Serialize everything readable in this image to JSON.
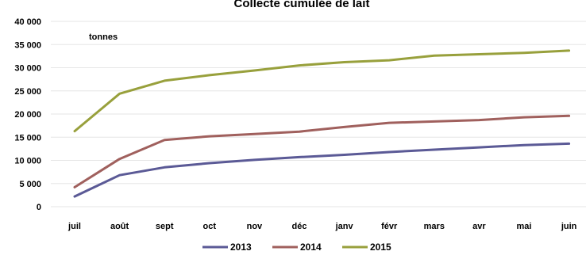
{
  "chart_data": {
    "type": "line",
    "title": "Collecte cumulée de  lait",
    "ylabel": "tonnes",
    "xlabel": "",
    "categories": [
      "juil",
      "août",
      "sept",
      "oct",
      "nov",
      "déc",
      "janv",
      "févr",
      "mars",
      "avr",
      "mai",
      "juin"
    ],
    "ylim": [
      0,
      40000
    ],
    "yticks": [
      0,
      5000,
      10000,
      15000,
      20000,
      25000,
      30000,
      35000,
      40000
    ],
    "ytick_labels": [
      "0",
      "5 000",
      "10 000",
      "15 000",
      "20 000",
      "25 000",
      "30 000",
      "35 000",
      "40 000"
    ],
    "grid": true,
    "legend_position": "bottom",
    "series": [
      {
        "name": "2013",
        "color": "#5b5a96",
        "values": [
          2200,
          6800,
          8500,
          9400,
          10100,
          10700,
          11200,
          11800,
          12300,
          12800,
          13300,
          13600
        ]
      },
      {
        "name": "2014",
        "color": "#a0605d",
        "values": [
          4200,
          10300,
          14400,
          15200,
          15700,
          16200,
          17200,
          18100,
          18400,
          18700,
          19300,
          19600
        ]
      },
      {
        "name": "2015",
        "color": "#98a03c",
        "values": [
          16300,
          24400,
          27200,
          28400,
          29400,
          30500,
          31200,
          31600,
          32600,
          32900,
          33200,
          33700
        ]
      }
    ]
  }
}
